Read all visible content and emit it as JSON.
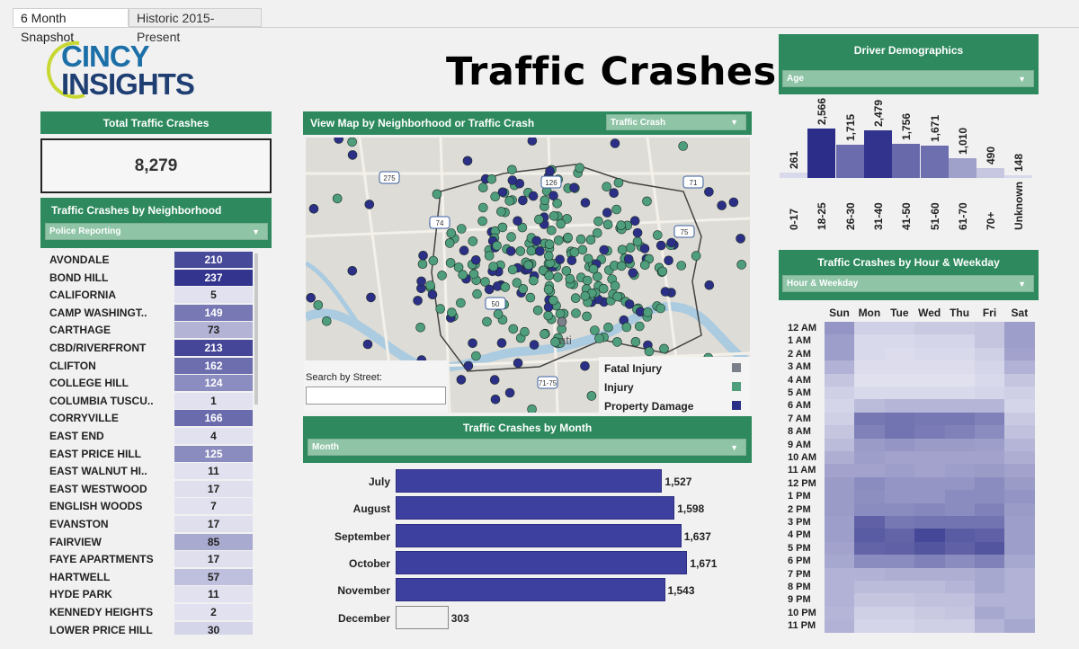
{
  "tabs": [
    "6 Month Snapshot",
    "Historic 2015-Present"
  ],
  "logo": {
    "line1": "CINCY",
    "line2": "INSIGHTS"
  },
  "title": "Traffic Crashes",
  "total": {
    "header": "Total Traffic Crashes",
    "value": "8,279"
  },
  "neighborhood": {
    "header": "Traffic Crashes by Neighborhood",
    "dropdown": "Police Reporting",
    "rows": [
      {
        "name": "AVONDALE",
        "value": "210",
        "n": 210
      },
      {
        "name": "BOND HILL",
        "value": "237",
        "n": 237
      },
      {
        "name": "CALIFORNIA",
        "value": "5",
        "n": 5
      },
      {
        "name": "CAMP WASHINGT..",
        "value": "149",
        "n": 149
      },
      {
        "name": "CARTHAGE",
        "value": "73",
        "n": 73
      },
      {
        "name": "CBD/RIVERFRONT",
        "value": "213",
        "n": 213
      },
      {
        "name": "CLIFTON",
        "value": "162",
        "n": 162
      },
      {
        "name": "COLLEGE HILL",
        "value": "124",
        "n": 124
      },
      {
        "name": "COLUMBIA TUSCU..",
        "value": "1",
        "n": 1
      },
      {
        "name": "CORRYVILLE",
        "value": "166",
        "n": 166
      },
      {
        "name": "EAST END",
        "value": "4",
        "n": 4
      },
      {
        "name": "EAST PRICE HILL",
        "value": "125",
        "n": 125
      },
      {
        "name": "EAST WALNUT HI..",
        "value": "11",
        "n": 11
      },
      {
        "name": "EAST WESTWOOD",
        "value": "17",
        "n": 17
      },
      {
        "name": "ENGLISH WOODS",
        "value": "7",
        "n": 7
      },
      {
        "name": "EVANSTON",
        "value": "17",
        "n": 17
      },
      {
        "name": "FAIRVIEW",
        "value": "85",
        "n": 85
      },
      {
        "name": "FAYE APARTMENTS",
        "value": "17",
        "n": 17
      },
      {
        "name": "HARTWELL",
        "value": "57",
        "n": 57
      },
      {
        "name": "HYDE PARK",
        "value": "11",
        "n": 11
      },
      {
        "name": "KENNEDY HEIGHTS",
        "value": "2",
        "n": 2
      },
      {
        "name": "LOWER PRICE HILL",
        "value": "30",
        "n": 30
      }
    ]
  },
  "map": {
    "header": "View Map by Neighborhood or Traffic Crash",
    "dropdown": "Traffic Crash",
    "search_label": "Search by Street:",
    "search_placeholder": "",
    "city_label": "ati",
    "route_labels": [
      "275",
      "126",
      "75",
      "74",
      "71",
      "50",
      "71-75"
    ],
    "legend": [
      {
        "label": "Fatal Injury",
        "color": "#7b7f8a"
      },
      {
        "label": "Injury",
        "color": "#4e9e7c"
      },
      {
        "label": "Property Damage",
        "color": "#2c2f86"
      }
    ]
  },
  "monthly": {
    "header": "Traffic Crashes by Month",
    "dropdown": "Month",
    "rows": [
      {
        "label": "July",
        "value": "1,527"
      },
      {
        "label": "August",
        "value": "1,598"
      },
      {
        "label": "September",
        "value": "1,637"
      },
      {
        "label": "October",
        "value": "1,671"
      },
      {
        "label": "November",
        "value": "1,543"
      },
      {
        "label": "December",
        "value": "303"
      }
    ]
  },
  "demographics": {
    "header": "Driver Demographics",
    "dropdown": "Age",
    "bars": [
      {
        "cat": "0-17",
        "value": "261"
      },
      {
        "cat": "18-25",
        "value": "2,566"
      },
      {
        "cat": "26-30",
        "value": "1,715"
      },
      {
        "cat": "31-40",
        "value": "2,479"
      },
      {
        "cat": "41-50",
        "value": "1,756"
      },
      {
        "cat": "51-60",
        "value": "1,671"
      },
      {
        "cat": "61-70",
        "value": "1,010"
      },
      {
        "cat": "70+",
        "value": "490"
      },
      {
        "cat": "Unknown",
        "value": "148"
      }
    ]
  },
  "heatmap": {
    "header": "Traffic Crashes by Hour & Weekday",
    "dropdown": "Hour & Weekday",
    "days": [
      "Sun",
      "Mon",
      "Tue",
      "Wed",
      "Thu",
      "Fri",
      "Sat"
    ],
    "hours": [
      "12 AM",
      "1 AM",
      "2 AM",
      "3 AM",
      "4 AM",
      "5 AM",
      "6 AM",
      "7 AM",
      "8 AM",
      "9 AM",
      "10 AM",
      "11 AM",
      "12 PM",
      "1 PM",
      "2 PM",
      "3 PM",
      "4 PM",
      "5 PM",
      "6 PM",
      "7 PM",
      "8 PM",
      "9 PM",
      "10 PM",
      "11 PM"
    ]
  },
  "chart_data": [
    {
      "type": "bar",
      "title": "Traffic Crashes by Month",
      "orientation": "horizontal",
      "categories": [
        "July",
        "August",
        "September",
        "October",
        "November",
        "December"
      ],
      "values": [
        1527,
        1598,
        1637,
        1671,
        1543,
        303
      ],
      "xlim": [
        0,
        1700
      ]
    },
    {
      "type": "bar",
      "title": "Driver Demographics",
      "categories": [
        "0-17",
        "18-25",
        "26-30",
        "31-40",
        "41-50",
        "51-60",
        "61-70",
        "70+",
        "Unknown"
      ],
      "values": [
        261,
        2566,
        1715,
        2479,
        1756,
        1671,
        1010,
        490,
        148
      ],
      "ylim": [
        0,
        2600
      ]
    },
    {
      "type": "heatmap",
      "title": "Traffic Crashes by Hour & Weekday",
      "x": [
        "Sun",
        "Mon",
        "Tue",
        "Wed",
        "Thu",
        "Fri",
        "Sat"
      ],
      "y": [
        "12 AM",
        "1 AM",
        "2 AM",
        "3 AM",
        "4 AM",
        "5 AM",
        "6 AM",
        "7 AM",
        "8 AM",
        "9 AM",
        "10 AM",
        "11 AM",
        "12 PM",
        "1 PM",
        "2 PM",
        "3 PM",
        "4 PM",
        "5 PM",
        "6 PM",
        "7 PM",
        "8 PM",
        "9 PM",
        "10 PM",
        "11 PM"
      ],
      "intensity": [
        [
          0.45,
          0.15,
          0.15,
          0.18,
          0.18,
          0.2,
          0.4
        ],
        [
          0.4,
          0.1,
          0.1,
          0.12,
          0.12,
          0.2,
          0.4
        ],
        [
          0.4,
          0.1,
          0.08,
          0.1,
          0.1,
          0.15,
          0.38
        ],
        [
          0.3,
          0.08,
          0.08,
          0.08,
          0.08,
          0.12,
          0.3
        ],
        [
          0.2,
          0.06,
          0.06,
          0.06,
          0.06,
          0.1,
          0.2
        ],
        [
          0.15,
          0.1,
          0.1,
          0.1,
          0.1,
          0.12,
          0.15
        ],
        [
          0.12,
          0.25,
          0.28,
          0.28,
          0.28,
          0.28,
          0.12
        ],
        [
          0.15,
          0.6,
          0.62,
          0.6,
          0.6,
          0.55,
          0.18
        ],
        [
          0.2,
          0.55,
          0.62,
          0.58,
          0.55,
          0.5,
          0.22
        ],
        [
          0.25,
          0.42,
          0.45,
          0.42,
          0.42,
          0.4,
          0.28
        ],
        [
          0.32,
          0.4,
          0.38,
          0.38,
          0.38,
          0.38,
          0.32
        ],
        [
          0.38,
          0.38,
          0.4,
          0.38,
          0.4,
          0.42,
          0.38
        ],
        [
          0.42,
          0.5,
          0.45,
          0.45,
          0.45,
          0.5,
          0.42
        ],
        [
          0.42,
          0.48,
          0.45,
          0.45,
          0.5,
          0.5,
          0.45
        ],
        [
          0.42,
          0.5,
          0.5,
          0.52,
          0.5,
          0.55,
          0.42
        ],
        [
          0.4,
          0.72,
          0.6,
          0.62,
          0.62,
          0.62,
          0.4
        ],
        [
          0.4,
          0.75,
          0.7,
          0.85,
          0.75,
          0.72,
          0.4
        ],
        [
          0.38,
          0.7,
          0.72,
          0.78,
          0.72,
          0.78,
          0.4
        ],
        [
          0.35,
          0.5,
          0.5,
          0.55,
          0.5,
          0.55,
          0.35
        ],
        [
          0.3,
          0.3,
          0.32,
          0.32,
          0.32,
          0.35,
          0.3
        ],
        [
          0.3,
          0.25,
          0.25,
          0.25,
          0.28,
          0.35,
          0.3
        ],
        [
          0.3,
          0.2,
          0.2,
          0.22,
          0.22,
          0.3,
          0.3
        ],
        [
          0.28,
          0.15,
          0.15,
          0.18,
          0.2,
          0.35,
          0.3
        ],
        [
          0.3,
          0.12,
          0.12,
          0.15,
          0.15,
          0.28,
          0.35
        ]
      ]
    }
  ]
}
